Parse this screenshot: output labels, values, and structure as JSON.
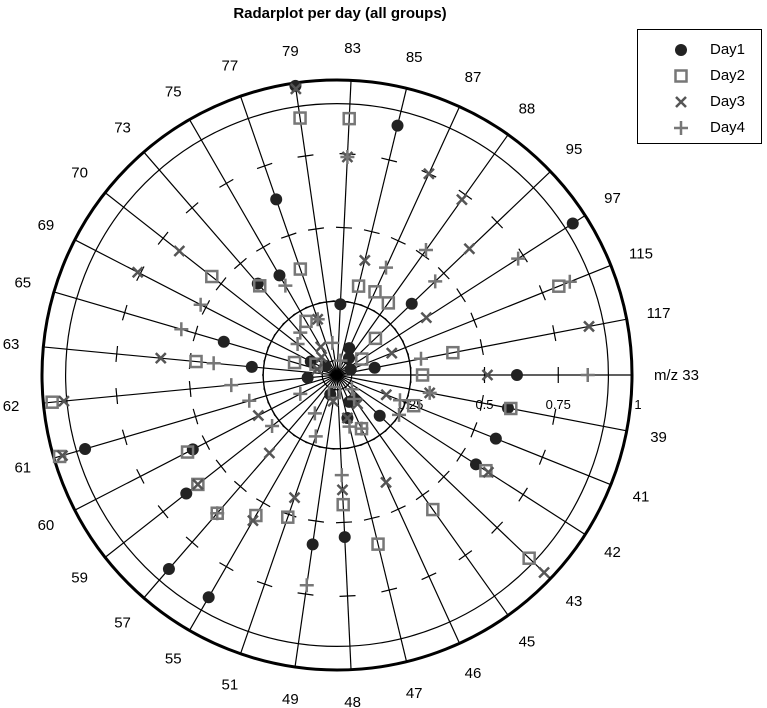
{
  "chart_data": {
    "type": "radar",
    "title": "Radarplot per day (all groups)",
    "axis_name_prefix": "m/z",
    "categories": [
      "33",
      "39",
      "41",
      "42",
      "43",
      "45",
      "46",
      "47",
      "48",
      "49",
      "51",
      "55",
      "57",
      "59",
      "60",
      "61",
      "62",
      "63",
      "65",
      "69",
      "70",
      "73",
      "75",
      "77",
      "79",
      "83",
      "85",
      "87",
      "88",
      "95",
      "97",
      "115",
      "117"
    ],
    "radial_ticks": [
      "0.25",
      "0.5",
      "0.75",
      "1"
    ],
    "rlim": [
      0,
      1
    ],
    "series": [
      {
        "name": "Day1",
        "marker": "filled-circle",
        "color": "#222222",
        "values": [
          0.61,
          0.59,
          0.58,
          0.56,
          0.2,
          0.1,
          0.1,
          0.15,
          0.55,
          0.58,
          0.07,
          0.87,
          0.87,
          0.65,
          0.55,
          0.89,
          0.1,
          0.29,
          0.4,
          0.1,
          0.05,
          0.41,
          0.39,
          0.63,
          0.99,
          0.24,
          0.87,
          0.1,
          0.07,
          0.35,
          0.95,
          0.05,
          0.13
        ]
      },
      {
        "name": "Day2",
        "marker": "open-square",
        "color": "#777777",
        "values": [
          0.29,
          0.6,
          0.28,
          0.6,
          0.9,
          0.56,
          0.2,
          0.59,
          0.44,
          0.06,
          0.51,
          0.55,
          0.62,
          0.6,
          0.57,
          0.98,
          0.97,
          0.48,
          0.15,
          0.08,
          0.54,
          0.4,
          0.21,
          0.38,
          0.88,
          0.87,
          0.31,
          0.31,
          0.3,
          0.18,
          0.1,
          0.81,
          0.4
        ]
      },
      {
        "name": "Day3",
        "marker": "x",
        "color": "#555555",
        "values": [
          0.51,
          0.32,
          0.18,
          0.61,
          0.97,
          0.12,
          0.4,
          0.15,
          0.39,
          0.09,
          0.44,
          0.57,
          0.35,
          0.6,
          0.3,
          0.97,
          0.93,
          0.6,
          0.07,
          0.76,
          0.68,
          0.08,
          0.11,
          0.2,
          0.98,
          0.74,
          0.4,
          0.75,
          0.73,
          0.62,
          0.36,
          0.2,
          0.87
        ]
      },
      {
        "name": "Day4",
        "marker": "plus",
        "color": "#777777",
        "values": [
          0.85,
          0.32,
          0.23,
          0.25,
          0.07,
          0.1,
          0.2,
          0.18,
          0.34,
          0.72,
          0.22,
          0.15,
          0.62,
          0.28,
          0.14,
          0.31,
          0.36,
          0.42,
          0.55,
          0.52,
          0.17,
          0.19,
          0.35,
          0.2,
          0.11,
          0.74,
          0.05,
          0.4,
          0.52,
          0.46,
          0.73,
          0.85,
          0.29
        ]
      }
    ],
    "legend_position": "top-right"
  }
}
